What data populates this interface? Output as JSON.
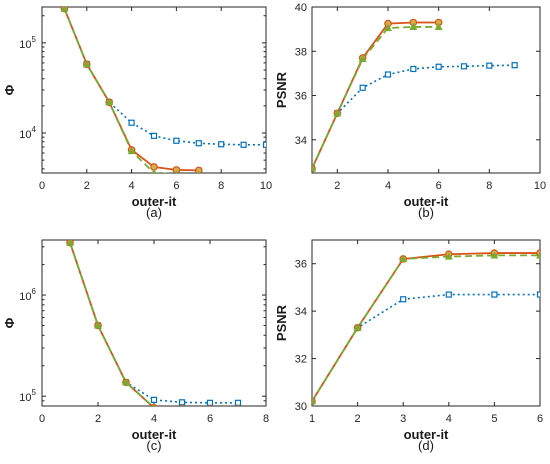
{
  "colors": {
    "red": "#d95319",
    "green": "#77ac30",
    "blue": "#0072bd",
    "marker_fill": "#d4b04a"
  },
  "chart_data": [
    {
      "id": "a",
      "type": "line",
      "caption": "(a)",
      "xlabel": "outer-it",
      "ylabel": "Φ",
      "yscale": "log",
      "xlim": [
        0,
        10
      ],
      "ylim": [
        3600,
        250000
      ],
      "xticks": [
        0,
        2,
        4,
        6,
        8,
        10
      ],
      "yticks": [
        {
          "value": 10000,
          "label": "10",
          "exp": "4"
        },
        {
          "value": 100000,
          "label": "10",
          "exp": "5"
        }
      ],
      "grid": false,
      "series": [
        {
          "style": "blue-dotted-square",
          "x": [
            1,
            2,
            3,
            4,
            5,
            6,
            7,
            8,
            9,
            10
          ],
          "y": [
            240000,
            58000,
            22000,
            13000,
            9300,
            8200,
            7700,
            7500,
            7400,
            7400
          ]
        },
        {
          "style": "red-solid-circle",
          "x": [
            1,
            2,
            3,
            4,
            5,
            6,
            7
          ],
          "y": [
            240000,
            58000,
            22000,
            6500,
            4200,
            3900,
            3850
          ]
        },
        {
          "style": "green-dashed-triangle",
          "x": [
            1,
            2,
            3,
            4,
            5,
            6,
            7
          ],
          "y": [
            240000,
            58000,
            22000,
            6300,
            3600,
            3500,
            3450
          ]
        }
      ]
    },
    {
      "id": "b",
      "type": "line",
      "caption": "(b)",
      "xlabel": "outer-it",
      "ylabel": "PSNR",
      "yscale": "linear",
      "xlim": [
        1,
        10
      ],
      "ylim": [
        32.5,
        40
      ],
      "xticks": [
        2,
        4,
        6,
        8,
        10
      ],
      "yticks": [
        34,
        36,
        38,
        40
      ],
      "grid": false,
      "series": [
        {
          "style": "blue-dotted-square",
          "x": [
            1,
            2,
            3,
            4,
            5,
            6,
            7,
            8,
            9
          ],
          "y": [
            32.7,
            35.2,
            36.35,
            36.95,
            37.2,
            37.3,
            37.32,
            37.35,
            37.37
          ]
        },
        {
          "style": "red-solid-circle",
          "x": [
            1,
            2,
            3,
            4,
            5,
            6
          ],
          "y": [
            32.7,
            35.2,
            37.7,
            39.25,
            39.3,
            39.3
          ]
        },
        {
          "style": "green-dashed-triangle",
          "x": [
            1,
            2,
            3,
            4,
            5,
            6
          ],
          "y": [
            32.7,
            35.2,
            37.65,
            39.05,
            39.1,
            39.1
          ]
        }
      ]
    },
    {
      "id": "c",
      "type": "line",
      "caption": "(c)",
      "xlabel": "outer-it",
      "ylabel": "Φ",
      "yscale": "log",
      "xlim": [
        0,
        8
      ],
      "ylim": [
        80000,
        3500000
      ],
      "xticks": [
        0,
        2,
        4,
        6,
        8
      ],
      "yticks": [
        {
          "value": 100000,
          "label": "10",
          "exp": "5"
        },
        {
          "value": 1000000,
          "label": "10",
          "exp": "6"
        }
      ],
      "grid": false,
      "series": [
        {
          "style": "blue-dotted-square",
          "x": [
            1,
            2,
            3,
            4,
            5,
            6,
            7
          ],
          "y": [
            3300000,
            500000,
            137000,
            92000,
            87000,
            86000,
            86000
          ]
        },
        {
          "style": "red-solid-circle",
          "x": [
            1,
            2,
            3,
            4,
            5,
            6,
            7
          ],
          "y": [
            3300000,
            500000,
            137000,
            77000,
            75000,
            75000,
            75000
          ]
        },
        {
          "style": "green-dashed-triangle",
          "x": [
            1,
            2,
            3,
            4,
            5,
            6,
            7
          ],
          "y": [
            3300000,
            500000,
            137000,
            77000,
            74000,
            74000,
            74000
          ]
        }
      ]
    },
    {
      "id": "d",
      "type": "line",
      "caption": "(d)",
      "xlabel": "outer-it",
      "ylabel": "PSNR",
      "yscale": "linear",
      "xlim": [
        1,
        6
      ],
      "ylim": [
        30,
        37
      ],
      "xticks": [
        1,
        2,
        3,
        4,
        5,
        6
      ],
      "yticks": [
        30,
        32,
        34,
        36
      ],
      "grid": false,
      "series": [
        {
          "style": "blue-dotted-square",
          "x": [
            1,
            2,
            3,
            4,
            5,
            6
          ],
          "y": [
            30.2,
            33.3,
            34.5,
            34.7,
            34.7,
            34.7
          ]
        },
        {
          "style": "red-solid-circle",
          "x": [
            1,
            2,
            3,
            4,
            5,
            6
          ],
          "y": [
            30.2,
            33.3,
            36.2,
            36.4,
            36.45,
            36.45
          ]
        },
        {
          "style": "green-dashed-triangle",
          "x": [
            1,
            2,
            3,
            4,
            5,
            6
          ],
          "y": [
            30.2,
            33.3,
            36.2,
            36.3,
            36.35,
            36.35
          ]
        }
      ]
    }
  ]
}
